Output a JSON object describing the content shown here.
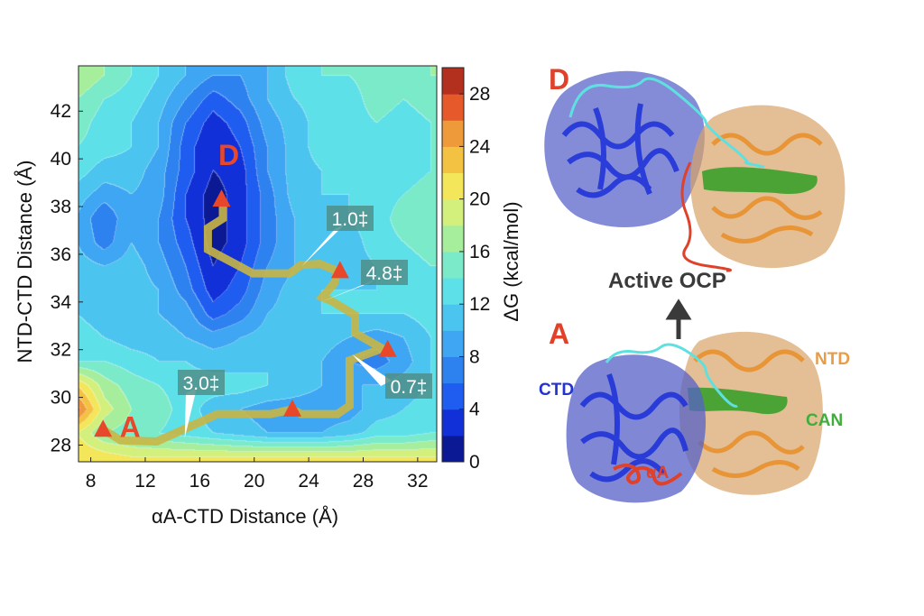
{
  "chart_data": {
    "type": "heatmap",
    "style": "filled-contour",
    "xlabel": "αA-CTD Distance (Å)",
    "ylabel": "NTD-CTD Distance (Å)",
    "colorbar_label": "ΔG (kcal/mol)",
    "xlim": [
      7.1,
      33.4
    ],
    "ylim": [
      27.3,
      43.9
    ],
    "zlim": [
      0,
      30
    ],
    "contour_step": 2,
    "xticks": [
      8,
      12,
      16,
      20,
      24,
      28,
      32
    ],
    "yticks": [
      28,
      30,
      32,
      34,
      36,
      38,
      40,
      42
    ],
    "colorbar_ticks": [
      0,
      4,
      8,
      12,
      16,
      20,
      24,
      28
    ],
    "colormap": [
      "#0b1a94",
      "#1230d8",
      "#1f5cf0",
      "#2d82f0",
      "#3ea6f2",
      "#4cc4f0",
      "#5ee0e8",
      "#7beac9",
      "#a7ee9c",
      "#d3f07c",
      "#f3e65a",
      "#f4c242",
      "#ef9a3a",
      "#e6592b",
      "#b3301f"
    ],
    "grid_x": [
      7,
      9,
      11,
      13,
      15,
      17,
      19,
      21,
      23,
      25,
      27,
      29,
      31,
      33
    ],
    "grid_y": [
      43.5,
      42.5,
      41.5,
      40.5,
      39.5,
      38.5,
      37.5,
      36.5,
      35.5,
      34.5,
      33.5,
      32.5,
      31.5,
      30.5,
      29.5,
      28.5,
      27.5
    ],
    "z": [
      [
        18,
        16,
        14,
        12,
        10,
        8,
        8,
        10,
        13,
        14,
        14,
        15,
        15,
        16
      ],
      [
        16,
        14,
        13,
        11,
        8,
        5,
        7,
        10,
        12,
        13,
        13,
        15,
        14,
        15
      ],
      [
        15,
        13,
        12,
        10,
        6,
        3,
        5,
        9,
        11,
        13,
        13,
        14,
        13,
        14
      ],
      [
        14,
        13,
        12,
        10,
        5,
        2,
        4,
        8,
        11,
        13,
        13,
        13,
        13,
        14
      ],
      [
        13,
        11,
        11,
        9,
        5,
        2,
        3,
        8,
        11,
        12,
        12,
        13,
        13,
        14
      ],
      [
        11,
        9,
        10,
        9,
        4,
        1,
        3,
        7,
        11,
        12,
        12,
        13,
        14,
        15
      ],
      [
        10,
        6,
        10,
        8,
        4,
        1,
        3,
        7,
        10,
        11,
        12,
        13,
        15,
        15
      ],
      [
        10,
        7,
        10,
        8,
        5,
        1,
        3,
        7,
        10,
        10,
        11,
        13,
        14,
        15
      ],
      [
        11,
        10,
        11,
        9,
        6,
        2,
        4,
        8,
        10,
        11,
        11,
        12,
        13,
        14
      ],
      [
        12,
        11,
        11,
        10,
        7,
        3,
        5,
        9,
        11,
        12,
        12,
        12,
        13,
        13
      ],
      [
        12,
        11,
        11,
        10,
        9,
        5,
        7,
        10,
        11,
        12,
        12,
        12,
        12,
        13
      ],
      [
        13,
        12,
        11,
        11,
        10,
        9,
        10,
        11,
        12,
        11,
        10,
        9,
        10,
        12
      ],
      [
        14,
        14,
        13,
        12,
        12,
        11,
        11,
        12,
        11,
        10,
        8,
        7,
        9,
        12
      ],
      [
        22,
        17,
        15,
        14,
        13,
        13,
        13,
        12,
        11,
        10,
        10,
        10,
        11,
        12
      ],
      [
        27,
        19,
        16,
        15,
        13,
        11,
        10,
        9,
        9,
        9,
        9,
        11,
        12,
        13
      ],
      [
        20,
        16,
        15,
        14,
        13,
        12,
        11,
        10,
        10,
        10,
        11,
        13,
        13,
        14
      ],
      [
        22,
        21,
        20,
        20,
        20,
        20,
        20,
        20,
        20,
        20,
        20,
        20,
        20,
        20
      ]
    ],
    "pathway": {
      "color": "#c8b646",
      "points": [
        [
          8.9,
          28.65
        ],
        [
          10.2,
          28.2
        ],
        [
          12.85,
          28.15
        ],
        [
          14.6,
          28.6
        ],
        [
          17.3,
          29.3
        ],
        [
          21.2,
          29.3
        ],
        [
          22.8,
          29.5
        ],
        [
          23.45,
          29.3
        ],
        [
          26.1,
          29.3
        ],
        [
          27.0,
          29.65
        ],
        [
          27.0,
          31.55
        ],
        [
          29.4,
          32.05
        ],
        [
          27.4,
          32.7
        ],
        [
          27.4,
          33.45
        ],
        [
          25.65,
          34.05
        ],
        [
          25.0,
          34.2
        ],
        [
          25.9,
          34.8
        ],
        [
          26.1,
          35.3
        ],
        [
          24.8,
          35.6
        ],
        [
          23.45,
          35.55
        ],
        [
          22.6,
          35.2
        ],
        [
          19.9,
          35.2
        ],
        [
          16.6,
          36.2
        ],
        [
          16.6,
          37.1
        ],
        [
          17.7,
          37.5
        ],
        [
          17.7,
          38.1
        ]
      ]
    },
    "states": [
      {
        "label": "A",
        "x": 8.9,
        "y": 28.65
      },
      {
        "label": "",
        "x": 22.8,
        "y": 29.5
      },
      {
        "label": "",
        "x": 29.8,
        "y": 32.0
      },
      {
        "label": "",
        "x": 26.3,
        "y": 35.3
      },
      {
        "label": "D",
        "x": 17.6,
        "y": 38.3
      }
    ],
    "state_color": "#e8472a",
    "barriers": [
      {
        "text": "1.0‡",
        "target": [
          23.5,
          35.5
        ]
      },
      {
        "text": "4.8‡",
        "target": [
          24.9,
          34.0
        ]
      },
      {
        "text": "3.0‡",
        "target": [
          14.9,
          28.3
        ]
      },
      {
        "text": "0.7‡",
        "target": [
          27.2,
          31.8
        ]
      }
    ]
  },
  "structures": {
    "top_state": "D",
    "bottom_state": "A",
    "transition_label": "Active OCP",
    "domain_labels": {
      "ntd": "NTD",
      "ctd": "CTD",
      "can": "CAN",
      "alpha_a": "αA"
    },
    "colors": {
      "state": "#e0412a",
      "ctd": "#2432d0",
      "ntd": "#e89c48",
      "can": "#3fae3a",
      "alpha_a": "#e0412a",
      "arrow": "#3a3a3a"
    }
  }
}
